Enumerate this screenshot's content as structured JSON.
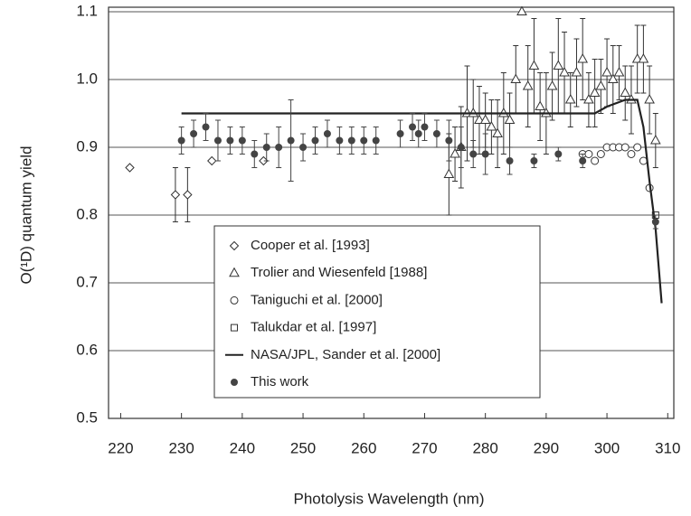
{
  "chart_data": {
    "type": "scatter",
    "xlabel": "Photolysis Wavelength (nm)",
    "ylabel": "O(¹D) quantum yield",
    "xlim": [
      218,
      311
    ],
    "ylim": [
      0.5,
      1.1
    ],
    "xticks": [
      220,
      230,
      240,
      250,
      260,
      270,
      280,
      290,
      300,
      310
    ],
    "yticks": [
      0.5,
      0.6,
      0.7,
      0.8,
      0.9,
      {
        "value": 1,
        "label": "1.0"
      },
      1.1
    ],
    "grid": true,
    "series": [
      {
        "name": "Cooper et al. [1993]",
        "type": "scatter",
        "marker": "diamond",
        "color": "#333333",
        "x": [
          221.5,
          229,
          231,
          235,
          243.5
        ],
        "values": [
          0.87,
          0.83,
          0.83,
          0.88,
          0.88
        ],
        "errors": [
          0,
          0.04,
          0.04,
          0,
          0
        ]
      },
      {
        "name": "Trolier and Wiesenfeld [1988]",
        "type": "scatter",
        "marker": "triangle",
        "color": "#333333",
        "x": [
          274,
          275,
          276,
          277,
          278,
          279,
          280,
          281,
          282,
          283,
          284,
          285,
          286,
          287,
          288,
          289,
          290,
          291,
          292,
          293,
          294,
          295,
          296,
          297,
          298,
          299,
          300,
          301,
          302,
          303,
          304,
          305,
          306,
          307,
          308
        ],
        "values": [
          0.86,
          0.89,
          0.9,
          0.95,
          0.95,
          0.94,
          0.94,
          0.93,
          0.92,
          0.95,
          0.94,
          1.0,
          1.1,
          0.99,
          1.02,
          0.96,
          0.95,
          0.99,
          1.02,
          1.01,
          0.97,
          1.01,
          1.03,
          0.97,
          0.98,
          0.99,
          1.01,
          1.0,
          1.01,
          0.98,
          0.97,
          1.03,
          1.03,
          0.97,
          0.91
        ],
        "errors": [
          0.06,
          0.04,
          0.06,
          0.07,
          0.05,
          0.05,
          0.04,
          0.04,
          0.05,
          0.06,
          0.04,
          0.05,
          0,
          0.06,
          0.07,
          0.05,
          0.06,
          0.05,
          0.07,
          0.06,
          0.04,
          0.05,
          0.06,
          0.04,
          0.05,
          0.04,
          0.05,
          0.05,
          0.04,
          0.04,
          0.05,
          0.05,
          0.05,
          0.05,
          0.04
        ]
      },
      {
        "name": "Taniguchi et al. [2000]",
        "type": "scatter",
        "marker": "circle",
        "color": "#333333",
        "x": [
          296,
          297,
          298,
          299,
          300,
          301,
          302,
          303,
          304,
          305,
          306,
          307
        ],
        "values": [
          0.89,
          0.89,
          0.88,
          0.89,
          0.9,
          0.9,
          0.9,
          0.9,
          0.89,
          0.9,
          0.88,
          0.84
        ]
      },
      {
        "name": "Talukdar et al. [1997]",
        "type": "scatter",
        "marker": "square",
        "color": "#333333",
        "x": [
          308
        ],
        "values": [
          0.8
        ]
      },
      {
        "name": "NASA/JPL, Sander et al.  [2000]",
        "type": "line",
        "color": "#222222",
        "x": [
          230,
          298,
          300,
          303,
          305,
          306,
          307,
          308,
          309
        ],
        "values": [
          0.95,
          0.95,
          0.96,
          0.97,
          0.97,
          0.93,
          0.85,
          0.78,
          0.67
        ]
      },
      {
        "name": "This work",
        "type": "scatter",
        "marker": "dot",
        "color": "#444444",
        "x": [
          230,
          232,
          234,
          236,
          238,
          240,
          242,
          244,
          246,
          248,
          250,
          252,
          254,
          256,
          258,
          260,
          262,
          266,
          268,
          269,
          270,
          272,
          274,
          276,
          278,
          280,
          284,
          288,
          292,
          296,
          308
        ],
        "values": [
          0.91,
          0.92,
          0.93,
          0.91,
          0.91,
          0.91,
          0.89,
          0.9,
          0.9,
          0.91,
          0.9,
          0.91,
          0.92,
          0.91,
          0.91,
          0.91,
          0.91,
          0.92,
          0.93,
          0.92,
          0.93,
          0.92,
          0.91,
          0.9,
          0.89,
          0.89,
          0.88,
          0.88,
          0.89,
          0.88,
          0.79
        ],
        "errors": [
          0.02,
          0.02,
          0.02,
          0.03,
          0.02,
          0.02,
          0.02,
          0.02,
          0.03,
          0.06,
          0.02,
          0.02,
          0.02,
          0.02,
          0.02,
          0.02,
          0.02,
          0.02,
          0.02,
          0.02,
          0.02,
          0.02,
          0.03,
          0.03,
          0.02,
          0.03,
          0.02,
          0.01,
          0.01,
          0.01,
          0.01
        ]
      }
    ]
  }
}
